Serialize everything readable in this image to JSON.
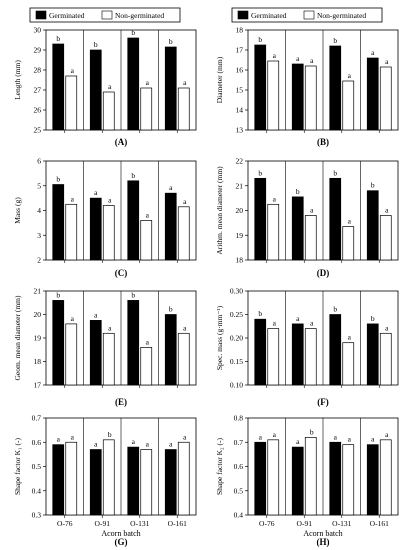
{
  "legend": {
    "germinated": "Germinated",
    "non_germinated": "Non-germinated"
  },
  "colors": {
    "germinated": "#000000",
    "non_germinated": "#ffffff",
    "axis": "#000000"
  },
  "chart_data": [
    {
      "id": "A",
      "panel_label": "(A)",
      "type": "bar",
      "categories": [
        "O-76",
        "O-91",
        "O-131",
        "O-161"
      ],
      "series": [
        {
          "name": "Germinated",
          "values": [
            29.3,
            29.0,
            29.6,
            29.15
          ],
          "labels": [
            "b",
            "b",
            "b",
            "b"
          ]
        },
        {
          "name": "Non-germinated",
          "values": [
            27.7,
            26.9,
            27.1,
            27.1
          ],
          "labels": [
            "a",
            "a",
            "a",
            "a"
          ]
        }
      ],
      "ylabel": "Length (mm)",
      "ylim": [
        25,
        30
      ],
      "yticks": [
        25,
        26,
        27,
        28,
        29,
        30
      ],
      "ytick_labels": [
        "25",
        "26",
        "27",
        "28",
        "29",
        "30"
      ]
    },
    {
      "id": "B",
      "panel_label": "(B)",
      "type": "bar",
      "categories": [
        "O-76",
        "O-91",
        "O-131",
        "O-161"
      ],
      "series": [
        {
          "name": "Germinated",
          "values": [
            17.25,
            16.3,
            17.2,
            16.6
          ],
          "labels": [
            "b",
            "a",
            "b",
            "a"
          ]
        },
        {
          "name": "Non-germinated",
          "values": [
            16.45,
            16.2,
            15.45,
            16.15
          ],
          "labels": [
            "a",
            "a",
            "a",
            "a"
          ]
        }
      ],
      "ylabel": "Diameter (mm)",
      "ylim": [
        13,
        18
      ],
      "yticks": [
        13,
        14,
        15,
        16,
        17,
        18
      ],
      "ytick_labels": [
        "13",
        "14",
        "15",
        "16",
        "17",
        "18"
      ]
    },
    {
      "id": "C",
      "panel_label": "(C)",
      "type": "bar",
      "categories": [
        "O-76",
        "O-91",
        "O-131",
        "O-161"
      ],
      "series": [
        {
          "name": "Germinated",
          "values": [
            5.05,
            4.5,
            5.2,
            4.7
          ],
          "labels": [
            "b",
            "a",
            "b",
            "a"
          ]
        },
        {
          "name": "Non-germinated",
          "values": [
            4.25,
            4.2,
            3.6,
            4.15
          ],
          "labels": [
            "a",
            "a",
            "a",
            "a"
          ]
        }
      ],
      "ylabel": "Mass (g)",
      "ylim": [
        2,
        6
      ],
      "yticks": [
        2,
        3,
        4,
        5,
        6
      ],
      "ytick_labels": [
        "2",
        "3",
        "4",
        "5",
        "6"
      ]
    },
    {
      "id": "D",
      "panel_label": "(D)",
      "type": "bar",
      "categories": [
        "O-76",
        "O-91",
        "O-131",
        "O-161"
      ],
      "series": [
        {
          "name": "Germinated",
          "values": [
            21.3,
            20.55,
            21.3,
            20.8
          ],
          "labels": [
            "b",
            "b",
            "b",
            "b"
          ]
        },
        {
          "name": "Non-germinated",
          "values": [
            20.25,
            19.8,
            19.35,
            19.8
          ],
          "labels": [
            "a",
            "a",
            "a",
            "a"
          ]
        }
      ],
      "ylabel": "Arithm. mean diameter (mm)",
      "ylim": [
        18,
        22
      ],
      "yticks": [
        18,
        19,
        20,
        21,
        22
      ],
      "ytick_labels": [
        "18",
        "19",
        "20",
        "21",
        "22"
      ]
    },
    {
      "id": "E",
      "panel_label": "(E)",
      "type": "bar",
      "categories": [
        "O-76",
        "O-91",
        "O-131",
        "O-161"
      ],
      "series": [
        {
          "name": "Germinated",
          "values": [
            20.6,
            19.75,
            20.6,
            20.0
          ],
          "labels": [
            "b",
            "a",
            "b",
            "b"
          ]
        },
        {
          "name": "Non-germinated",
          "values": [
            19.6,
            19.2,
            18.6,
            19.2
          ],
          "labels": [
            "a",
            "a",
            "a",
            "a"
          ]
        }
      ],
      "ylabel": "Geom. mean diameter (mm)",
      "ylim": [
        17,
        21
      ],
      "yticks": [
        17,
        18,
        19,
        20,
        21
      ],
      "ytick_labels": [
        "17",
        "18",
        "19",
        "20",
        "21"
      ]
    },
    {
      "id": "F",
      "panel_label": "(F)",
      "type": "bar",
      "categories": [
        "O-76",
        "O-91",
        "O-131",
        "O-161"
      ],
      "series": [
        {
          "name": "Germinated",
          "values": [
            0.24,
            0.23,
            0.25,
            0.23
          ],
          "labels": [
            "b",
            "a",
            "b",
            "b"
          ]
        },
        {
          "name": "Non-germinated",
          "values": [
            0.22,
            0.22,
            0.19,
            0.21
          ],
          "labels": [
            "a",
            "a",
            "a",
            "a"
          ]
        }
      ],
      "ylabel": "Spec. mass (g·mm⁻¹)",
      "ylim": [
        0.1,
        0.3
      ],
      "yticks": [
        0.1,
        0.15,
        0.2,
        0.25,
        0.3
      ],
      "ytick_labels": [
        "0.10",
        "0.15",
        "0.20",
        "0.25",
        "0.30"
      ]
    },
    {
      "id": "G",
      "panel_label": "(G)",
      "type": "bar",
      "categories": [
        "O-76",
        "O-91",
        "O-131",
        "O-161"
      ],
      "series": [
        {
          "name": "Germinated",
          "values": [
            0.59,
            0.57,
            0.58,
            0.57
          ],
          "labels": [
            "a",
            "a",
            "a",
            "a"
          ]
        },
        {
          "name": "Non-germinated",
          "values": [
            0.6,
            0.61,
            0.57,
            0.6
          ],
          "labels": [
            "a",
            "b",
            "a",
            "a"
          ]
        }
      ],
      "ylabel": "Shape factor K₁ (-)",
      "ylim": [
        0.3,
        0.7
      ],
      "yticks": [
        0.3,
        0.4,
        0.5,
        0.6,
        0.7
      ],
      "ytick_labels": [
        "0.3",
        "0.4",
        "0.5",
        "0.6",
        "0.7"
      ],
      "xlabel": "Acorn batch"
    },
    {
      "id": "H",
      "panel_label": "(H)",
      "type": "bar",
      "categories": [
        "O-76",
        "O-91",
        "O-131",
        "O-161"
      ],
      "series": [
        {
          "name": "Germinated",
          "values": [
            0.7,
            0.68,
            0.7,
            0.69
          ],
          "labels": [
            "a",
            "a",
            "a",
            "a"
          ]
        },
        {
          "name": "Non-germinated",
          "values": [
            0.71,
            0.72,
            0.69,
            0.71
          ],
          "labels": [
            "a",
            "b",
            "a",
            "a"
          ]
        }
      ],
      "ylabel": "Shape factor K₂ (-)",
      "ylim": [
        0.4,
        0.8
      ],
      "yticks": [
        0.4,
        0.5,
        0.6,
        0.7,
        0.8
      ],
      "ytick_labels": [
        "0.4",
        "0.5",
        "0.6",
        "0.7",
        "0.8"
      ],
      "xlabel": "Acorn batch"
    }
  ]
}
